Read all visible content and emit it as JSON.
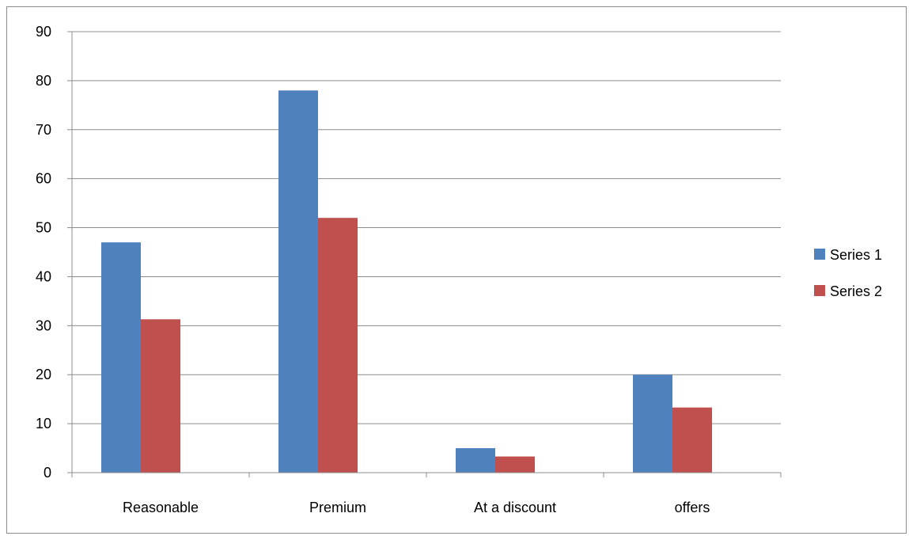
{
  "chart_data": {
    "type": "bar",
    "categories": [
      "Reasonable",
      "Premium",
      "At a discount",
      "offers"
    ],
    "series": [
      {
        "name": "Series 1",
        "values": [
          47,
          78,
          5,
          20
        ],
        "color": "#4f81bd"
      },
      {
        "name": "Series 2",
        "values": [
          31.3,
          52,
          3.3,
          13.3
        ],
        "color": "#c0504d"
      }
    ],
    "ylim": [
      0,
      90
    ],
    "yticks": [
      0,
      10,
      20,
      30,
      40,
      50,
      60,
      70,
      80,
      90
    ],
    "grid": true,
    "legend_position": "right",
    "title": "",
    "xlabel": "",
    "ylabel": ""
  }
}
